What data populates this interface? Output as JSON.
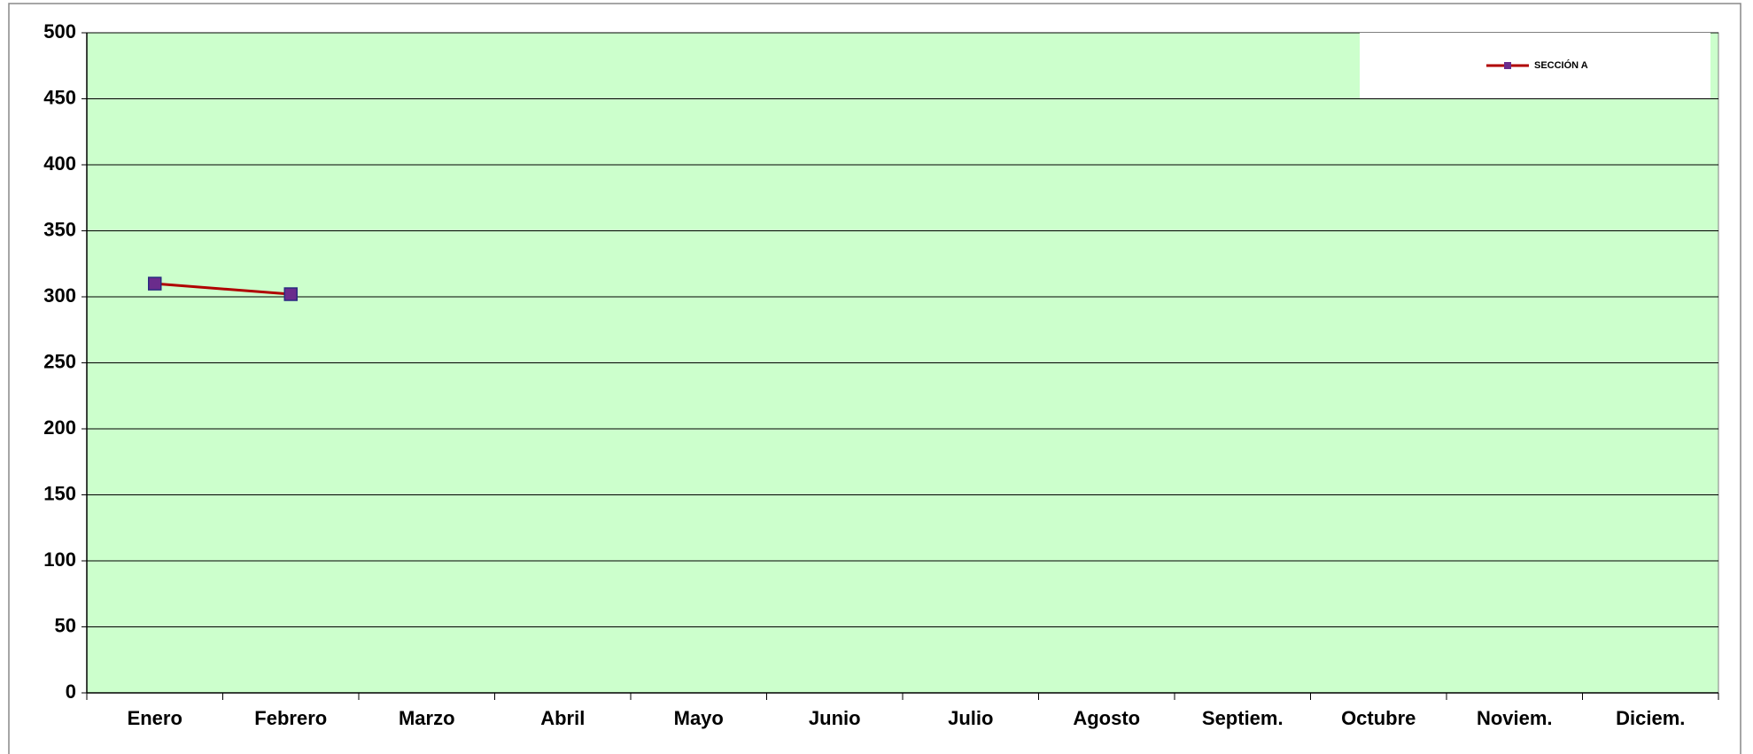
{
  "chart_data": {
    "type": "line",
    "categories": [
      "Enero",
      "Febrero",
      "Marzo",
      "Abril",
      "Mayo",
      "Junio",
      "Julio",
      "Agosto",
      "Septiem.",
      "Octubre",
      "Noviem.",
      "Diciem."
    ],
    "series": [
      {
        "name": "SECCIÓN A",
        "color": "#b00000",
        "marker_color": "#6a2c8c",
        "values": [
          310,
          302,
          null,
          null,
          null,
          null,
          null,
          null,
          null,
          null,
          null,
          null
        ]
      }
    ],
    "ylim": [
      0,
      500
    ],
    "yticks": [
      0,
      50,
      100,
      150,
      200,
      250,
      300,
      350,
      400,
      450,
      500
    ],
    "grid": true,
    "plot_background": "#ccffcc",
    "legend": "top-right"
  }
}
